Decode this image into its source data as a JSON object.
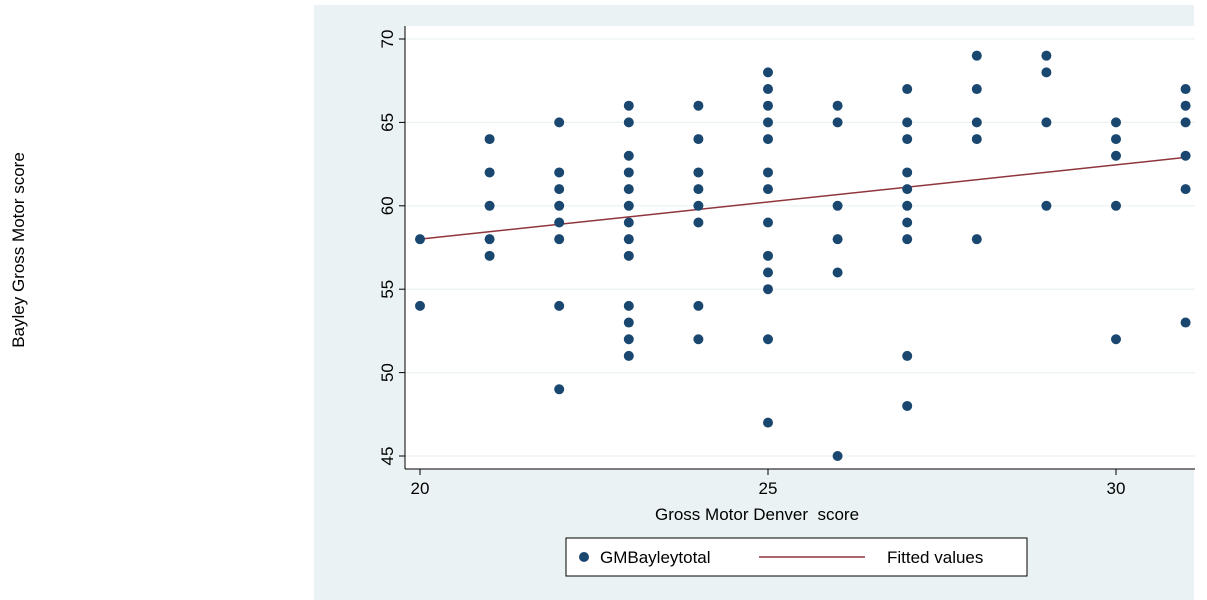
{
  "chart_data": {
    "type": "scatter",
    "xlabel": "Gross Motor Denver  score",
    "ylabel": "Bayley Gross Motor score",
    "xlim": [
      20,
      31
    ],
    "ylim": [
      45,
      70
    ],
    "x_ticks": [
      20,
      25,
      30
    ],
    "y_ticks": [
      45,
      50,
      55,
      60,
      65,
      70
    ],
    "grid": "horizontal",
    "legend_position": "bottom",
    "colors": {
      "points": "#1a476f",
      "fit_line": "#90353b",
      "background": "#eaf2f3"
    },
    "series": [
      {
        "name": "GMBayleytotal",
        "type": "scatter",
        "points": [
          [
            20,
            58
          ],
          [
            20,
            54
          ],
          [
            21,
            64
          ],
          [
            21,
            62
          ],
          [
            21,
            60
          ],
          [
            21,
            58
          ],
          [
            21,
            57
          ],
          [
            22,
            65
          ],
          [
            22,
            62
          ],
          [
            22,
            61
          ],
          [
            22,
            60
          ],
          [
            22,
            59
          ],
          [
            22,
            58
          ],
          [
            22,
            54
          ],
          [
            22,
            49
          ],
          [
            23,
            66
          ],
          [
            23,
            65
          ],
          [
            23,
            63
          ],
          [
            23,
            62
          ],
          [
            23,
            61
          ],
          [
            23,
            60
          ],
          [
            23,
            59
          ],
          [
            23,
            58
          ],
          [
            23,
            57
          ],
          [
            23,
            54
          ],
          [
            23,
            53
          ],
          [
            23,
            52
          ],
          [
            23,
            51
          ],
          [
            24,
            66
          ],
          [
            24,
            64
          ],
          [
            24,
            62
          ],
          [
            24,
            61
          ],
          [
            24,
            60
          ],
          [
            24,
            59
          ],
          [
            24,
            54
          ],
          [
            24,
            52
          ],
          [
            25,
            68
          ],
          [
            25,
            67
          ],
          [
            25,
            66
          ],
          [
            25,
            65
          ],
          [
            25,
            64
          ],
          [
            25,
            62
          ],
          [
            25,
            61
          ],
          [
            25,
            59
          ],
          [
            25,
            57
          ],
          [
            25,
            56
          ],
          [
            25,
            55
          ],
          [
            25,
            52
          ],
          [
            25,
            47
          ],
          [
            26,
            66
          ],
          [
            26,
            65
          ],
          [
            26,
            60
          ],
          [
            26,
            58
          ],
          [
            26,
            56
          ],
          [
            26,
            45
          ],
          [
            27,
            67
          ],
          [
            27,
            65
          ],
          [
            27,
            64
          ],
          [
            27,
            62
          ],
          [
            27,
            61
          ],
          [
            27,
            60
          ],
          [
            27,
            59
          ],
          [
            27,
            58
          ],
          [
            27,
            51
          ],
          [
            27,
            48
          ],
          [
            28,
            69
          ],
          [
            28,
            67
          ],
          [
            28,
            65
          ],
          [
            28,
            64
          ],
          [
            28,
            58
          ],
          [
            29,
            69
          ],
          [
            29,
            68
          ],
          [
            29,
            65
          ],
          [
            29,
            60
          ],
          [
            30,
            65
          ],
          [
            30,
            64
          ],
          [
            30,
            63
          ],
          [
            30,
            60
          ],
          [
            30,
            52
          ],
          [
            31,
            67
          ],
          [
            31,
            66
          ],
          [
            31,
            65
          ],
          [
            31,
            63
          ],
          [
            31,
            61
          ],
          [
            31,
            53
          ]
        ]
      },
      {
        "name": "Fitted values",
        "type": "line",
        "points": [
          [
            20,
            58.0
          ],
          [
            31,
            62.9
          ]
        ]
      }
    ]
  }
}
